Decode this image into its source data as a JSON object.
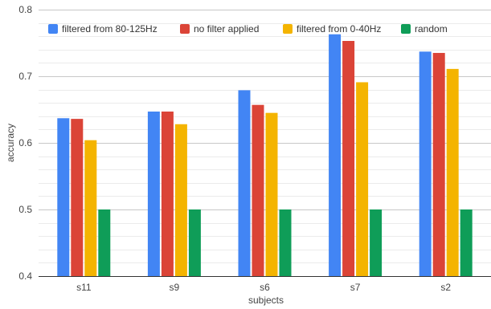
{
  "chart_data": {
    "type": "bar",
    "title": "",
    "xlabel": "subjects",
    "ylabel": "accuracy",
    "ylim": [
      0.4,
      0.8
    ],
    "y_ticks": [
      "0.4",
      "0.5",
      "0.6",
      "0.7",
      "0.8"
    ],
    "grid": true,
    "legend_position": "top",
    "categories": [
      "s11",
      "s9",
      "s6",
      "s7",
      "s2"
    ],
    "series": [
      {
        "name": "filtered from 80-125Hz",
        "color": "#4285F4",
        "values": [
          0.637,
          0.647,
          0.679,
          0.763,
          0.737
        ]
      },
      {
        "name": "no filter applied",
        "color": "#DB4437",
        "values": [
          0.636,
          0.647,
          0.657,
          0.753,
          0.735
        ]
      },
      {
        "name": "filtered from 0-40Hz",
        "color": "#F4B400",
        "values": [
          0.604,
          0.628,
          0.645,
          0.691,
          0.711
        ]
      },
      {
        "name": "random",
        "color": "#0F9D58",
        "values": [
          0.5,
          0.5,
          0.5,
          0.5,
          0.5
        ]
      }
    ]
  }
}
